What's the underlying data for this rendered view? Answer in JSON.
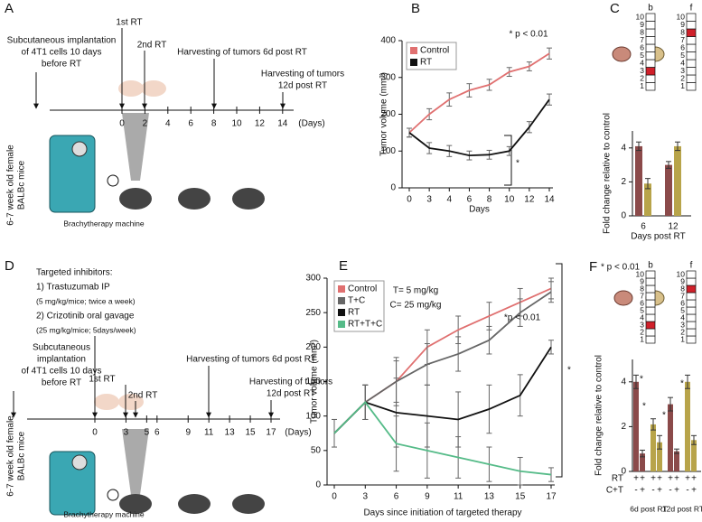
{
  "panels": {
    "A": {
      "letter": "A",
      "ticks": [
        0,
        2,
        4,
        6,
        8,
        10,
        12,
        14
      ],
      "unit": "(Days)",
      "implant": [
        "Subcutaneous implantation",
        "of 4T1 cells 10 days",
        "before RT"
      ],
      "rt1": "1st RT",
      "rt2": "2nd RT",
      "harvest1": [
        "Harvesting of tumors 6d post RT"
      ],
      "harvest2": [
        "Harvesting of tumors",
        "12d post RT"
      ],
      "mice": [
        "6-7 week old female",
        "BALBc mice"
      ],
      "machine": "Brachytherapy machine"
    },
    "D": {
      "letter": "D",
      "ticks": [
        0,
        3,
        5,
        6,
        9,
        11,
        13,
        15,
        17
      ],
      "unit": "(Days)",
      "inhibitors": [
        "Targeted inhibitors:",
        "1) Trastuzumab IP",
        "(5 mg/kg/mice; twice a week)",
        "2) Crizotinib oral gavage",
        "(25 mg/kg/mice; 5days/week)"
      ],
      "implant": [
        "Subcutaneous",
        "implantation",
        "of 4T1 cells 10 days",
        "before RT"
      ],
      "rt1": "1st RT",
      "rt2": "2nd RT",
      "harvest1": [
        "Harvesting of tumors 6d post RT"
      ],
      "harvest2": [
        "Harvesting of tumors",
        "12d post RT"
      ],
      "mice": [
        "6-7 week old female",
        "BALBc mice"
      ],
      "machine": "Brachytherapy machine"
    }
  },
  "chart_data": [
    {
      "type": "line",
      "panel": "B",
      "y_label": "Tumor volume (mm³)",
      "x_label": "Days",
      "categories": [
        0,
        3,
        4,
        6,
        8,
        10,
        12,
        14
      ],
      "series": [
        {
          "name": "Control",
          "color": "#e07070",
          "values": [
            150,
            200,
            240,
            265,
            280,
            315,
            330,
            365
          ],
          "errors": [
            12,
            15,
            18,
            18,
            15,
            12,
            12,
            15
          ]
        },
        {
          "name": "RT",
          "color": "#111111",
          "values": [
            150,
            108,
            100,
            88,
            90,
            100,
            165,
            240
          ],
          "errors": [
            12,
            15,
            15,
            12,
            12,
            12,
            15,
            15
          ]
        }
      ],
      "ylim": [
        0,
        400
      ],
      "yticks": [
        0,
        100,
        200,
        300,
        400
      ],
      "legend": "top-left",
      "annotations": [
        "* p < 0.01",
        "*"
      ]
    },
    {
      "type": "bar",
      "panel": "C",
      "y_label": "Fold change relative to control",
      "x_label": "Days post RT",
      "categories": [
        6,
        12
      ],
      "series": [
        {
          "color": "#8b4a4a",
          "values": [
            4.1,
            3.0
          ],
          "errors": [
            0.25,
            0.2
          ]
        },
        {
          "color": "#b8a44a",
          "values": [
            1.9,
            4.1
          ],
          "errors": [
            0.3,
            0.25
          ]
        }
      ],
      "ylim": [
        0,
        5
      ],
      "yticks": [
        0,
        2,
        4
      ],
      "ladders": [
        {
          "label": "b",
          "highlight": 3
        },
        {
          "label": "f",
          "highlight": 8
        }
      ],
      "ladder_numbers": [
        1,
        2,
        3,
        4,
        5,
        6,
        7,
        8,
        9,
        10
      ]
    },
    {
      "type": "line",
      "panel": "E",
      "y_label": "Tumor volume (mm³)",
      "x_label": "Days since initiation of targeted therapy",
      "categories": [
        0,
        3,
        6,
        9,
        11,
        13,
        15,
        17
      ],
      "series": [
        {
          "name": "Control",
          "color": "#e07070",
          "values": [
            75,
            120,
            150,
            200,
            225,
            245,
            265,
            285
          ],
          "errors": [
            20,
            25,
            30,
            25,
            20,
            20,
            20,
            15
          ]
        },
        {
          "name": "T+C",
          "color": "#666666",
          "values": [
            75,
            120,
            150,
            175,
            190,
            210,
            250,
            280
          ],
          "errors": [
            20,
            25,
            35,
            30,
            25,
            20,
            20,
            15
          ]
        },
        {
          "name": "RT",
          "color": "#111111",
          "values": [
            75,
            120,
            105,
            100,
            95,
            110,
            130,
            200
          ],
          "errors": [
            20,
            25,
            50,
            45,
            40,
            35,
            30,
            10
          ]
        },
        {
          "name": "RT+T+C",
          "color": "#55bb88",
          "values": [
            75,
            120,
            60,
            50,
            40,
            30,
            20,
            15
          ],
          "errors": [
            20,
            25,
            40,
            40,
            30,
            25,
            20,
            10
          ]
        }
      ],
      "ylim": [
        0,
        300
      ],
      "yticks": [
        0,
        50,
        100,
        150,
        200,
        250,
        300
      ],
      "legend": "top-left",
      "annotations": [
        "T= 5 mg/kg",
        "C= 25 mg/kg",
        "*p < 0.01",
        "*"
      ]
    },
    {
      "type": "bar",
      "panel": "F",
      "y_label": "Fold change relative to control",
      "title": "* p < 0.01",
      "categories": [
        "6d post RT",
        "12d post RT"
      ],
      "series": [
        {
          "color": "#8b4a4a",
          "values": [
            4.0,
            3.0
          ],
          "errors": [
            0.3,
            0.3
          ]
        },
        {
          "color": "#8b4a4a",
          "values": [
            0.8,
            0.9
          ],
          "errors": [
            0.15,
            0.1
          ]
        },
        {
          "color": "#b8a44a",
          "values": [
            2.1,
            4.0
          ],
          "errors": [
            0.25,
            0.3
          ]
        },
        {
          "color": "#b8a44a",
          "values": [
            1.3,
            1.4
          ],
          "errors": [
            0.3,
            0.2
          ]
        }
      ],
      "ylim": [
        0,
        5
      ],
      "yticks": [
        0,
        2,
        4
      ],
      "conditions": [
        {
          "label": "RT",
          "signs": [
            "+",
            "+",
            "+",
            "+",
            "+",
            "+",
            "+",
            "+"
          ]
        },
        {
          "label": "C+T",
          "signs": [
            "-",
            "+",
            "-",
            "+",
            "-",
            "+",
            "-",
            "+"
          ]
        }
      ],
      "annotations": [
        "*",
        "*",
        "*",
        "*"
      ],
      "ladders": [
        {
          "label": "b",
          "highlight": 3
        },
        {
          "label": "f",
          "highlight": 8
        }
      ],
      "ladder_numbers": [
        1,
        2,
        3,
        4,
        5,
        6,
        7,
        8,
        9,
        10
      ]
    }
  ]
}
